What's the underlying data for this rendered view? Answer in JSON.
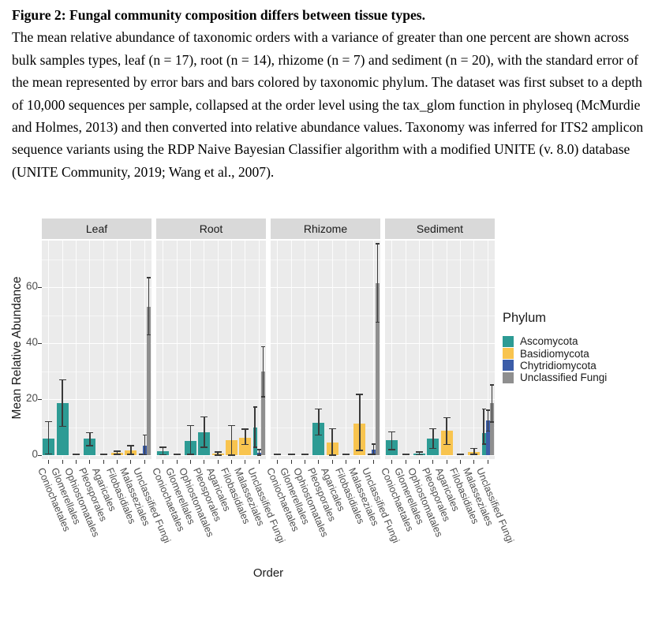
{
  "caption": {
    "title": "Figure 2: Fungal community composition differs between tissue types.",
    "body": "The mean relative abundance of taxonomic orders with a variance of greater than one percent are shown across bulk samples types, leaf (n = 17), root (n = 14), rhizome (n = 7) and sediment (n = 20), with the standard error of the mean represented by error bars and bars colored by taxonomic phylum. The dataset was first subset to a depth of 10,000 sequences per sample, collapsed at the order level using the tax_glom function in phyloseq (McMurdie and Holmes, 2013) and then converted into relative abundance values. Taxonomy was inferred for ITS2 amplicon sequence variants using the RDP Naive Bayesian Classifier algorithm with a modified UNITE (v. 8.0) database (UNITE Community, 2019; Wang et al., 2007)."
  },
  "chart_data": {
    "type": "bar",
    "title": "",
    "xlabel": "Order",
    "ylabel": "Mean Relative Abundance",
    "y_ticks": [
      0,
      20,
      40,
      60
    ],
    "ylim": [
      0,
      76
    ],
    "grid": true,
    "legend": {
      "title": "Phylum",
      "position": "right",
      "entries": [
        "Ascomycota",
        "Basidiomycota",
        "Chytridiomycota",
        "Unclassified Fungi"
      ]
    },
    "colors": {
      "Ascomycota": "#2D9B94",
      "Basidiomycota": "#F8C44F",
      "Chytridiomycota": "#3C5DA8",
      "Unclassified Fungi": "#8F8F8F",
      "panel_bg": "#EBEBEB",
      "strip_bg": "#D9D9D9"
    },
    "categories": [
      "Coniochaetales",
      "Glomerellales",
      "Ophiostomatales",
      "Pleosporales",
      "Agaricales",
      "Filobasidiales",
      "Malasseziales",
      "Unclassified Fungi"
    ],
    "facets": [
      {
        "name": "Leaf",
        "bars": [
          {
            "order": "Coniochaetales",
            "segments": [
              {
                "phylum": "Ascomycota",
                "value": 6.0,
                "err": [
                  0.5,
                  12.0
                ]
              }
            ]
          },
          {
            "order": "Glomerellales",
            "segments": [
              {
                "phylum": "Ascomycota",
                "value": 18.7,
                "err": [
                  10.3,
                  27.0
                ]
              }
            ]
          },
          {
            "order": "Ophiostomatales",
            "segments": [
              {
                "phylum": "Ascomycota",
                "value": 0.2
              }
            ]
          },
          {
            "order": "Pleosporales",
            "segments": [
              {
                "phylum": "Ascomycota",
                "value": 5.8,
                "err": [
                  3.4,
                  8.1
                ]
              }
            ]
          },
          {
            "order": "Agaricales",
            "segments": [
              {
                "phylum": "Basidiomycota",
                "value": 0.2
              }
            ]
          },
          {
            "order": "Filobasidiales",
            "segments": [
              {
                "phylum": "Basidiomycota",
                "value": 0.9,
                "err": [
                  0.3,
                  1.5
                ]
              }
            ]
          },
          {
            "order": "Malasseziales",
            "segments": [
              {
                "phylum": "Basidiomycota",
                "value": 1.8,
                "err": [
                  0.3,
                  3.4
                ]
              }
            ]
          },
          {
            "order": "Unclassified Fungi",
            "segments": [
              {
                "phylum": "Ascomycota",
                "value": 0.2
              },
              {
                "phylum": "Chytridiomycota",
                "value": 3.4,
                "err": [
                  0.2,
                  7.2
                ]
              },
              {
                "phylum": "Unclassified Fungi",
                "value": 53.0,
                "err": [
                  43.0,
                  63.5
                ]
              }
            ]
          }
        ]
      },
      {
        "name": "Root",
        "bars": [
          {
            "order": "Coniochaetales",
            "segments": [
              {
                "phylum": "Ascomycota",
                "value": 1.3,
                "err": [
                  0.2,
                  2.9
                ]
              }
            ]
          },
          {
            "order": "Glomerellales",
            "segments": [
              {
                "phylum": "Ascomycota",
                "value": 0.2
              }
            ]
          },
          {
            "order": "Ophiostomatales",
            "segments": [
              {
                "phylum": "Ascomycota",
                "value": 5.0,
                "err": [
                  0.4,
                  10.7
                ]
              }
            ]
          },
          {
            "order": "Pleosporales",
            "segments": [
              {
                "phylum": "Ascomycota",
                "value": 8.1,
                "err": [
                  2.9,
                  13.8
                ]
              }
            ]
          },
          {
            "order": "Agaricales",
            "segments": [
              {
                "phylum": "Basidiomycota",
                "value": 0.5,
                "err": [
                  0.1,
                  1.2
                ]
              }
            ]
          },
          {
            "order": "Filobasidiales",
            "segments": [
              {
                "phylum": "Basidiomycota",
                "value": 5.3,
                "err": [
                  0.1,
                  10.7
                ]
              }
            ]
          },
          {
            "order": "Malasseziales",
            "segments": [
              {
                "phylum": "Basidiomycota",
                "value": 6.2,
                "err": [
                  3.9,
                  9.3
                ]
              }
            ]
          },
          {
            "order": "Unclassified Fungi",
            "segments": [
              {
                "phylum": "Ascomycota",
                "value": 10.0,
                "err": [
                  2.9,
                  17.3
                ]
              },
              {
                "phylum": "Chytridiomycota",
                "value": 0.8,
                "err": [
                  0.1,
                  2.0
                ]
              },
              {
                "phylum": "Unclassified Fungi",
                "value": 29.8,
                "err": [
                  20.9,
                  38.8
                ]
              }
            ]
          }
        ]
      },
      {
        "name": "Rhizome",
        "bars": [
          {
            "order": "Coniochaetales",
            "segments": [
              {
                "phylum": "Ascomycota",
                "value": 0.2
              }
            ]
          },
          {
            "order": "Glomerellales",
            "segments": [
              {
                "phylum": "Ascomycota",
                "value": 0.2
              }
            ]
          },
          {
            "order": "Ophiostomatales",
            "segments": [
              {
                "phylum": "Ascomycota",
                "value": 0.2
              }
            ]
          },
          {
            "order": "Pleosporales",
            "segments": [
              {
                "phylum": "Ascomycota",
                "value": 11.5,
                "err": [
                  7.2,
                  16.6
                ]
              }
            ]
          },
          {
            "order": "Agaricales",
            "segments": [
              {
                "phylum": "Basidiomycota",
                "value": 4.5,
                "err": [
                  0.1,
                  9.5
                ]
              }
            ]
          },
          {
            "order": "Filobasidiales",
            "segments": [
              {
                "phylum": "Basidiomycota",
                "value": 0.2
              }
            ]
          },
          {
            "order": "Malasseziales",
            "segments": [
              {
                "phylum": "Basidiomycota",
                "value": 11.4,
                "err": [
                  1.8,
                  21.8
                ]
              }
            ]
          },
          {
            "order": "Unclassified Fungi",
            "segments": [
              {
                "phylum": "Ascomycota",
                "value": 0.2
              },
              {
                "phylum": "Chytridiomycota",
                "value": 2.0,
                "err": [
                  0.3,
                  4.0
                ]
              },
              {
                "phylum": "Unclassified Fungi",
                "value": 61.5,
                "err": [
                  47.5,
                  75.5
                ]
              }
            ]
          }
        ]
      },
      {
        "name": "Sediment",
        "bars": [
          {
            "order": "Coniochaetales",
            "segments": [
              {
                "phylum": "Ascomycota",
                "value": 5.3,
                "err": [
                  2.0,
                  8.4
                ]
              }
            ]
          },
          {
            "order": "Glomerellales",
            "segments": [
              {
                "phylum": "Ascomycota",
                "value": 0.3
              }
            ]
          },
          {
            "order": "Ophiostomatales",
            "segments": [
              {
                "phylum": "Ascomycota",
                "value": 0.7,
                "err": [
                  0.2,
                  1.2
                ]
              }
            ]
          },
          {
            "order": "Pleosporales",
            "segments": [
              {
                "phylum": "Ascomycota",
                "value": 5.8,
                "err": [
                  2.5,
                  9.5
                ]
              }
            ]
          },
          {
            "order": "Agaricales",
            "segments": [
              {
                "phylum": "Basidiomycota",
                "value": 8.6,
                "err": [
                  3.9,
                  13.5
                ]
              }
            ]
          },
          {
            "order": "Filobasidiales",
            "segments": [
              {
                "phylum": "Basidiomycota",
                "value": 0.3
              }
            ]
          },
          {
            "order": "Malasseziales",
            "segments": [
              {
                "phylum": "Basidiomycota",
                "value": 1.2,
                "err": [
                  0.3,
                  2.5
                ]
              }
            ]
          },
          {
            "order": "Unclassified Fungi",
            "segments": [
              {
                "phylum": "Ascomycota",
                "value": 8.0,
                "err": [
                  4.0,
                  16.5
                ]
              },
              {
                "phylum": "Chytridiomycota",
                "value": 12.4,
                "err": [
                  8.6,
                  16.1
                ]
              },
              {
                "phylum": "Unclassified Fungi",
                "value": 18.5,
                "err": [
                  11.9,
                  25.1
                ]
              }
            ]
          }
        ]
      }
    ]
  }
}
